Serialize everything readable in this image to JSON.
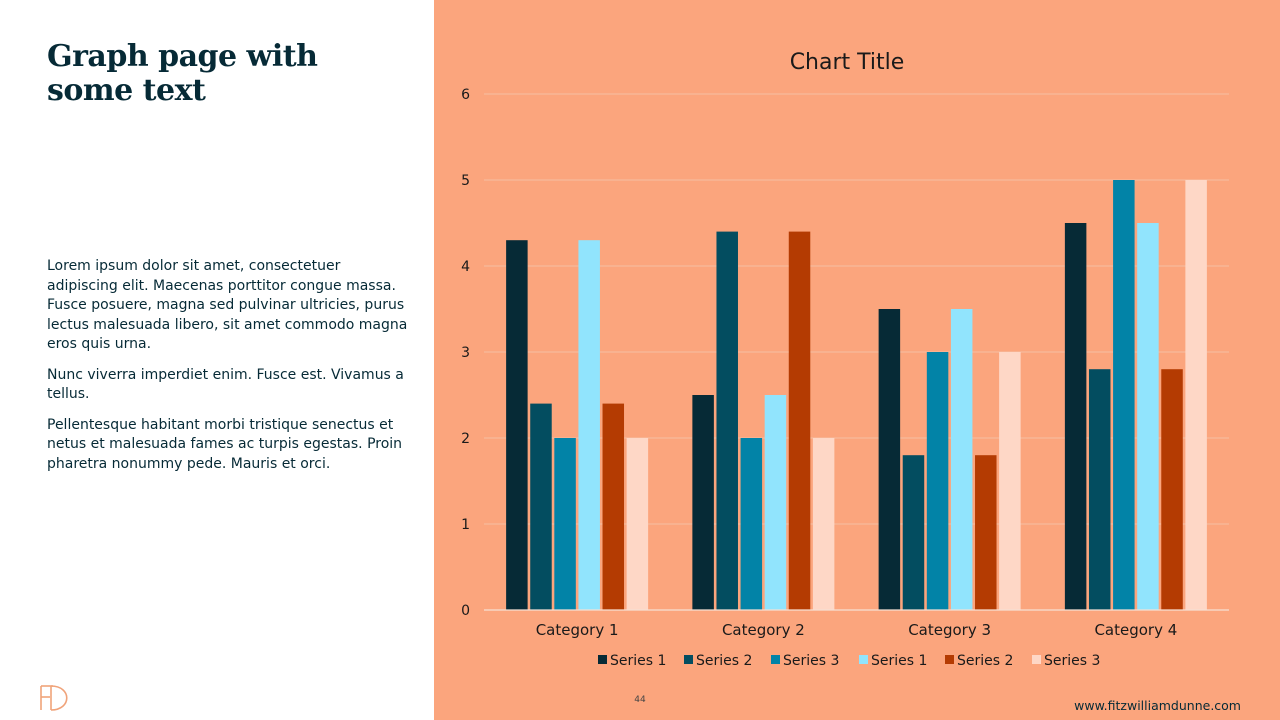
{
  "slide": {
    "title": "Graph page with some text",
    "paragraphs": [
      "Lorem ipsum dolor sit amet, consectetuer adipiscing elit. Maecenas porttitor congue massa. Fusce posuere, magna sed pulvinar ultricies, purus lectus malesuada libero, sit amet commodo magna eros quis urna.",
      "Nunc viverra imperdiet enim. Fusce est. Vivamus a tellus.",
      "Pellentesque habitant morbi tristique senectus et netus et malesuada fames ac turpis egestas. Proin pharetra nonummy pede. Mauris et orci."
    ],
    "page_number": "44",
    "website": "www.fitzwilliamdunne.com",
    "logo_text": "FD",
    "colors": {
      "panel_background": "#fba57d",
      "title_color": "#062a36",
      "logo_color": "#f0a37a"
    }
  },
  "chart_data": {
    "type": "bar",
    "title": "Chart Title",
    "xlabel": "",
    "ylabel": "",
    "ylim": [
      0,
      6
    ],
    "yticks": [
      0,
      1,
      2,
      3,
      4,
      5,
      6
    ],
    "grid": true,
    "legend_position": "bottom",
    "categories": [
      "Category 1",
      "Category 2",
      "Category 3",
      "Category 4"
    ],
    "series": [
      {
        "name": "Series 1",
        "color": "#062a36",
        "values": [
          4.3,
          2.5,
          3.5,
          4.5
        ]
      },
      {
        "name": "Series 2",
        "color": "#034d60",
        "values": [
          2.4,
          4.4,
          1.8,
          2.8
        ]
      },
      {
        "name": "Series 3",
        "color": "#0283a7",
        "values": [
          2.0,
          2.0,
          3.0,
          5.0
        ]
      },
      {
        "name": "Series 1",
        "color": "#91e4fd",
        "values": [
          4.3,
          2.5,
          3.5,
          4.5
        ]
      },
      {
        "name": "Series 2",
        "color": "#b43b02",
        "values": [
          2.4,
          4.4,
          1.8,
          2.8
        ]
      },
      {
        "name": "Series 3",
        "color": "#fed7c6",
        "values": [
          2.0,
          2.0,
          3.0,
          5.0
        ]
      }
    ]
  }
}
